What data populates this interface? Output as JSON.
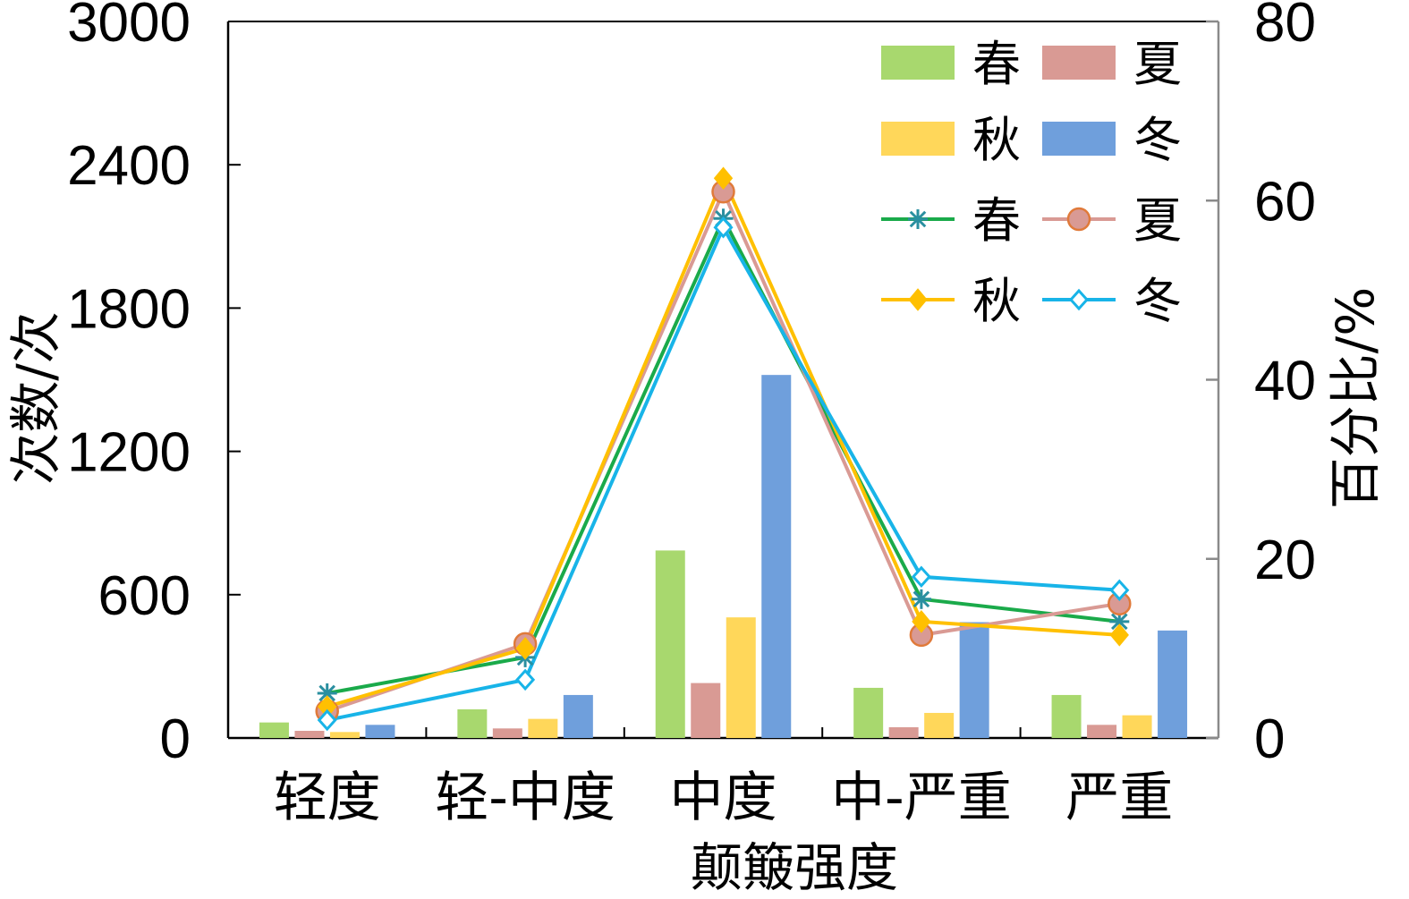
{
  "chart_data": {
    "type": "bar+line",
    "categories": [
      "轻度",
      "轻-中度",
      "中度",
      "中-严重",
      "严重"
    ],
    "xlabel": "颠簸强度",
    "ylabel_left": "次数/次",
    "ylabel_right": "百分比/%",
    "ylim_left": [
      0,
      3000
    ],
    "ylim_right": [
      0,
      80
    ],
    "yticks_left": [
      "0",
      "600",
      "1200",
      "1800",
      "2400",
      "3000"
    ],
    "yticks_right": [
      "0",
      "20",
      "40",
      "60",
      "80"
    ],
    "bar_series": [
      {
        "name": "春",
        "color": "#a8d86e",
        "values": [
          65,
          120,
          785,
          210,
          180
        ]
      },
      {
        "name": "夏",
        "color": "#d99a94",
        "values": [
          30,
          40,
          230,
          45,
          55
        ]
      },
      {
        "name": "秋",
        "color": "#ffd75a",
        "values": [
          25,
          80,
          505,
          105,
          95
        ]
      },
      {
        "name": "冬",
        "color": "#6f9fdc",
        "values": [
          55,
          180,
          1520,
          485,
          450
        ]
      }
    ],
    "line_series": [
      {
        "name": "春",
        "color": "#1aaa4a",
        "marker": "asterisk",
        "marker_color": "#2a8fa0",
        "values": [
          5,
          9,
          58,
          15.5,
          13
        ]
      },
      {
        "name": "夏",
        "color": "#d99a94",
        "marker": "circle",
        "marker_color": "#d99a94",
        "values": [
          3,
          10.5,
          61,
          11.5,
          15
        ]
      },
      {
        "name": "秋",
        "color": "#ffc000",
        "marker": "diamond",
        "marker_color": "#ffc000",
        "values": [
          3.5,
          10,
          62.5,
          13,
          11.5
        ]
      },
      {
        "name": "冬",
        "color": "#18b4e8",
        "marker": "open-diamond",
        "marker_color": "#18b4e8",
        "values": [
          2,
          6.5,
          57,
          18,
          16.5
        ]
      }
    ],
    "legend_position": "top-right",
    "grid": false
  }
}
